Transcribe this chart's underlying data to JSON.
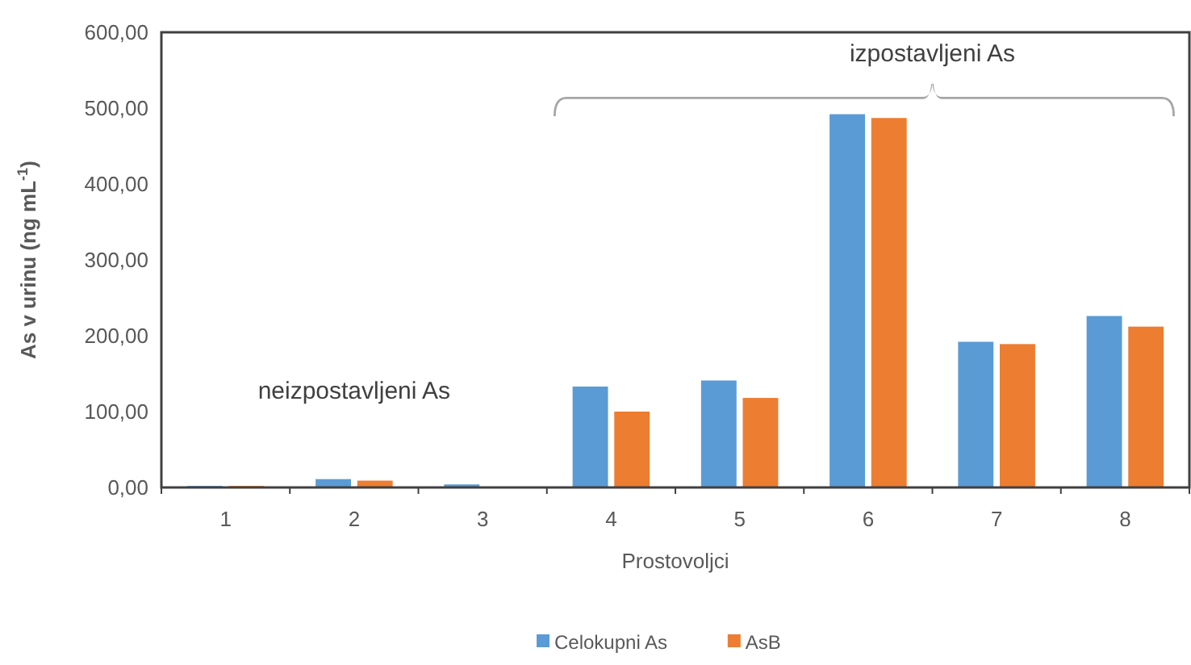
{
  "chart_data": {
    "type": "bar",
    "xlabel": "Prostovoljci",
    "ylabel": "As v urinu (ng mL$^{-1}$)",
    "categories": [
      "1",
      "2",
      "3",
      "4",
      "5",
      "6",
      "7",
      "8"
    ],
    "series": [
      {
        "name": "Celokupni As",
        "color": "#5b9bd5",
        "values": [
          2,
          11,
          4,
          133,
          141,
          492,
          192,
          226
        ]
      },
      {
        "name": "AsB",
        "color": "#ed7d31",
        "values": [
          2,
          9,
          0,
          100,
          118,
          487,
          189,
          212
        ]
      }
    ],
    "ylim": [
      0,
      600
    ],
    "yticks": [
      {
        "value": 0,
        "label": "0,00"
      },
      {
        "value": 100,
        "label": "100,00"
      },
      {
        "value": 200,
        "label": "200,00"
      },
      {
        "value": 300,
        "label": "300,00"
      },
      {
        "value": 400,
        "label": "400,00"
      },
      {
        "value": 500,
        "label": "500,00"
      },
      {
        "value": 600,
        "label": "600,00"
      }
    ],
    "annotations": [
      "izpostavljeni As",
      "neizpostavljeni As"
    ],
    "legend": "bottom",
    "grid": false
  }
}
